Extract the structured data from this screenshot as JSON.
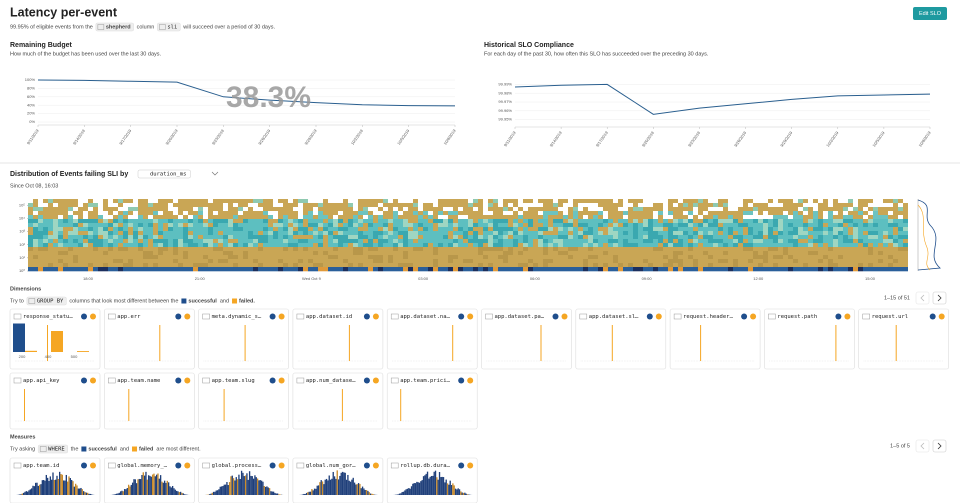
{
  "header": {
    "title": "Latency per-event",
    "button": "Edit SLO"
  },
  "subtitle": [
    "99.95% of eligible events from the",
    "shepherd",
    "column",
    "sli",
    "will succeed over a period of 30 days."
  ],
  "chart_data": [
    {
      "type": "line",
      "title": "Remaining Budget",
      "subtitle": "How much of the budget has been used over the last 30 days.",
      "annotation": "38.3%",
      "color": "#2a5f8f",
      "categories": [
        "9/11/2019",
        "9/14/2019",
        "9/17/2019",
        "9/20/2019",
        "9/23/2019",
        "9/26/2019",
        "9/29/2019",
        "10/2/2019",
        "10/5/2019",
        "10/8/2019"
      ],
      "values": [
        100,
        99,
        97,
        95,
        60,
        52,
        46,
        41,
        39,
        38.3
      ],
      "ylim": [
        0,
        100
      ],
      "yticks": [
        {
          "value": 100,
          "label": "100%"
        },
        {
          "value": 80,
          "label": "80%"
        },
        {
          "value": 60,
          "label": "60%"
        },
        {
          "value": 40,
          "label": "40%"
        },
        {
          "value": 20,
          "label": "20%"
        },
        {
          "value": 0,
          "label": "0%"
        }
      ],
      "grid": true
    },
    {
      "type": "line",
      "title": "Historical SLO Compliance",
      "subtitle": "For each day of the past 30, how often this SLO has succeeded over the preceding 30 days.",
      "color": "#2a5f8f",
      "categories": [
        "9/11/2019",
        "9/14/2019",
        "9/17/2019",
        "9/20/2019",
        "9/23/2019",
        "9/26/2019",
        "9/29/2019",
        "10/2/2019",
        "10/5/2019",
        "10/8/2019"
      ],
      "values": [
        99.987,
        99.989,
        99.99,
        99.956,
        99.963,
        99.968,
        99.973,
        99.977,
        99.978,
        99.979
      ],
      "ylim": [
        99.945,
        99.995
      ],
      "yticks": [
        {
          "value": 99.99,
          "label": "99.99%"
        },
        {
          "value": 99.98,
          "label": "99.98%"
        },
        {
          "value": 99.97,
          "label": "99.97%"
        },
        {
          "value": 99.96,
          "label": "99.96%"
        },
        {
          "value": 99.95,
          "label": "99.95%"
        }
      ],
      "grid": true
    },
    {
      "type": "heatmap",
      "title": "Distribution of Events failing SLI by",
      "column": "duration_ms",
      "subtitle": "Since Oct 08, 16:03",
      "categories": [
        "18:00",
        "21:00",
        "Wed Oct 9",
        "03:00",
        "06:00",
        "09:00",
        "12:00",
        "15:00"
      ],
      "log_scale": true,
      "ylim": [
        1,
        300000
      ],
      "yticks": [
        {
          "value": 100000,
          "label": "10⁵"
        },
        {
          "value": 10000,
          "label": "10⁴"
        },
        {
          "value": 1000,
          "label": "10³"
        },
        {
          "value": 100,
          "label": "10²"
        },
        {
          "value": 10,
          "label": "10¹"
        },
        {
          "value": 1,
          "label": "10⁰"
        }
      ]
    },
    {
      "type": "bar",
      "categories": [
        "200",
        "400",
        "500"
      ],
      "ylim": [
        0,
        100
      ],
      "series": [
        {
          "color": "#1f4e8c",
          "values": [
            95,
            0,
            0
          ]
        },
        {
          "color": "#f5a623",
          "values": [
            4,
            70,
            3
          ]
        }
      ]
    }
  ],
  "dimensions": {
    "title": "Dimensions",
    "hint": [
      "Try to",
      "GROUP BY",
      "columns that look most different between the",
      "successful",
      "and",
      "failed."
    ],
    "pagination": "1–15 of 51",
    "cards": [
      "response_statu…",
      "app.err",
      "meta.dynamic_s…",
      "app.dataset.id",
      "app.dataset.na…",
      "app.dataset.pa…",
      "app.dataset.sl…",
      "request.header…",
      "request.path",
      "request.url",
      "app.api_key",
      "app.team.name",
      "app.team.slug",
      "app.num_datase…",
      "app.team.prici…"
    ]
  },
  "measures": {
    "title": "Measures",
    "hint": [
      "Try asking",
      "WHERE",
      "the",
      "successful",
      "and",
      "failed",
      "are most different."
    ],
    "pagination": "1–5 of 5",
    "cards": [
      "app.team.id",
      "global.memory_…",
      "global.process…",
      "global.num_gor…",
      "rollup.db.dura…"
    ]
  }
}
